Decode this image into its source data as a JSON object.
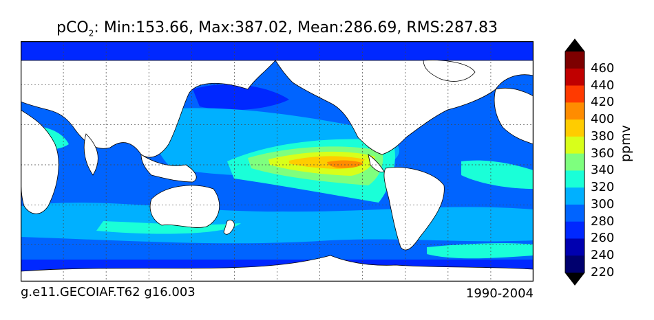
{
  "title": {
    "var_main": "pCO",
    "var_sub": "2",
    "stats": ": Min:153.66, Max:387.02, Mean:286.69, RMS:287.83"
  },
  "footer": {
    "left": "g.e11.GECOIAF.T62 g16.003",
    "right": "1990-2004"
  },
  "colorbar": {
    "label": "ppmv",
    "ticks": [
      "460",
      "440",
      "420",
      "400",
      "380",
      "360",
      "340",
      "320",
      "300",
      "280",
      "260",
      "240",
      "220"
    ],
    "colors": [
      "#7d0000",
      "#c00000",
      "#ff3a00",
      "#ff8c00",
      "#ffcc00",
      "#d8ff1a",
      "#7eff7e",
      "#1affd8",
      "#00b0ff",
      "#0064ff",
      "#0028ff",
      "#0000b0",
      "#00006e"
    ],
    "over_color": "#000000",
    "under_color": "#000000"
  },
  "map_colors": {
    "land": "#ffffff",
    "c200": "#00006e",
    "c220": "#0000b0",
    "c240": "#0028ff",
    "c260": "#0064ff",
    "c280": "#00b0ff",
    "c300": "#1affd8",
    "c320": "#7eff7e",
    "c340": "#d8ff1a",
    "c360": "#ffcc00",
    "c380": "#ff8c00"
  }
}
